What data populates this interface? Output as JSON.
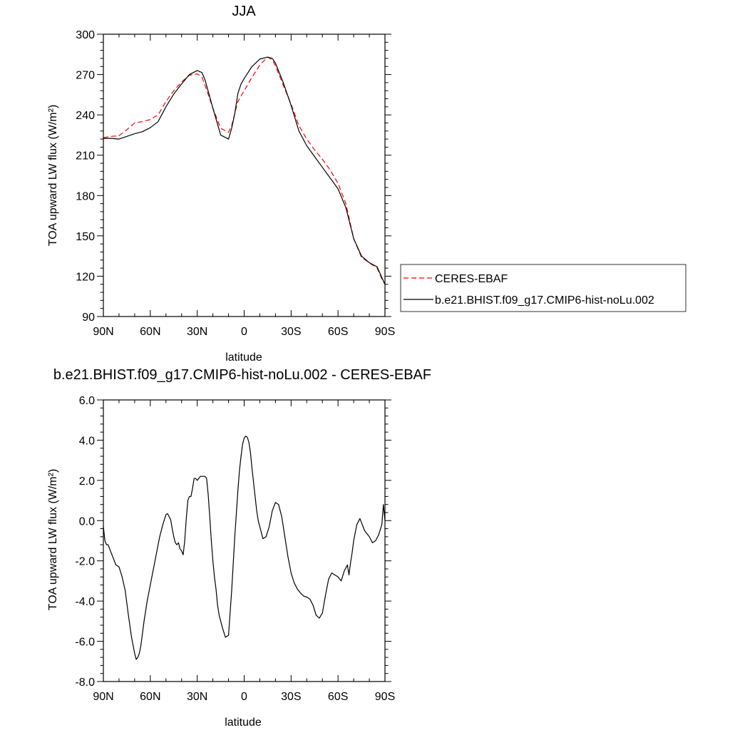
{
  "chart_data": [
    {
      "type": "line",
      "title": "JJA",
      "xlabel": "latitude",
      "ylabel": "TOA upward LW flux (W/m²)",
      "xlim": [
        90,
        -90
      ],
      "ylim": [
        90,
        300
      ],
      "x_ticks": [
        90,
        60,
        30,
        0,
        -30,
        -60,
        -90
      ],
      "x_tick_labels": [
        "90N",
        "60N",
        "30N",
        "0",
        "30S",
        "60S",
        "90S"
      ],
      "y_ticks": [
        90,
        120,
        150,
        180,
        210,
        240,
        270,
        300
      ],
      "y_tick_labels": [
        "90",
        "120",
        "150",
        "180",
        "210",
        "240",
        "270",
        "300"
      ],
      "grid": false,
      "legend_position": "right",
      "series": [
        {
          "name": "CERES-EBAF",
          "style": "dashed",
          "color": "#ff0000",
          "x": [
            90,
            85,
            80,
            75,
            70,
            65,
            60,
            55,
            50,
            45,
            40,
            35,
            30,
            27,
            25,
            20,
            15,
            10,
            8,
            6,
            4,
            2,
            0,
            -5,
            -10,
            -15,
            -18,
            -20,
            -25,
            -30,
            -35,
            -40,
            -45,
            -50,
            -55,
            -60,
            -65,
            -70,
            -75,
            -80,
            -85,
            -88,
            -90
          ],
          "y": [
            223,
            224,
            224.5,
            229,
            234,
            235,
            236.5,
            240,
            250,
            258,
            264.5,
            269.5,
            270.5,
            268,
            262,
            245,
            230,
            227,
            232,
            241,
            250,
            254,
            258,
            268,
            277,
            283,
            281,
            276.5,
            262,
            248,
            232,
            222,
            214,
            207,
            199,
            189,
            174,
            148,
            134,
            130,
            126,
            118,
            114
          ]
        },
        {
          "name": "b.e21.BHIST.f09_g17.CMIP6-hist-noLu.002",
          "style": "solid",
          "color": "#000000",
          "x": [
            90,
            85,
            80,
            75,
            70,
            65,
            60,
            55,
            50,
            45,
            40,
            35,
            30,
            27,
            25,
            20,
            15,
            10,
            8,
            6,
            4,
            2,
            0,
            -5,
            -10,
            -15,
            -18,
            -20,
            -25,
            -30,
            -35,
            -40,
            -45,
            -50,
            -55,
            -60,
            -65,
            -70,
            -75,
            -80,
            -85,
            -88,
            -90
          ],
          "y": [
            222.5,
            222.5,
            222,
            224,
            226,
            227.5,
            230.5,
            235,
            246,
            255.5,
            263,
            270,
            273,
            271.5,
            266,
            245,
            225,
            222,
            230,
            241,
            256,
            263,
            267,
            276,
            281.5,
            283,
            282,
            278.5,
            264,
            247,
            228,
            217,
            209,
            201,
            193,
            185,
            171,
            148,
            135,
            130,
            127,
            119,
            114
          ]
        }
      ]
    },
    {
      "type": "line",
      "title": "b.e21.BHIST.f09_g17.CMIP6-hist-noLu.002 - CERES-EBAF",
      "xlabel": "latitude",
      "ylabel": "TOA upward LW flux (W/m²)",
      "xlim": [
        90,
        -90
      ],
      "ylim": [
        -8,
        6
      ],
      "x_ticks": [
        90,
        60,
        30,
        0,
        -30,
        -60,
        -90
      ],
      "x_tick_labels": [
        "90N",
        "60N",
        "30N",
        "0",
        "30S",
        "60S",
        "90S"
      ],
      "y_ticks": [
        -8,
        -6,
        -4,
        -2,
        0,
        2,
        4,
        6
      ],
      "y_tick_labels": [
        "-8.0",
        "-6.0",
        "-4.0",
        "-2.0",
        "0.0",
        "2.0",
        "4.0",
        "6.0"
      ],
      "grid": false,
      "series": [
        {
          "style": "solid",
          "color": "#000000",
          "x": [
            90,
            89,
            88,
            87,
            86,
            84,
            82,
            80,
            78,
            76,
            74,
            72,
            70,
            69,
            68,
            67,
            66,
            65,
            64,
            62,
            60,
            58,
            56,
            54,
            52,
            50,
            49,
            48,
            47,
            46,
            45,
            44,
            43,
            42,
            41,
            40,
            39,
            38,
            37,
            36,
            35,
            34,
            33,
            32,
            31,
            30,
            29,
            28,
            27,
            26,
            25,
            24,
            23,
            22,
            21,
            20,
            19,
            18,
            17,
            16,
            14,
            12,
            10,
            8,
            6,
            4,
            3,
            2,
            1,
            0,
            -1,
            -2,
            -3,
            -4,
            -5,
            -6,
            -7,
            -8,
            -9,
            -10,
            -12,
            -14,
            -16,
            -18,
            -20,
            -22,
            -24,
            -26,
            -28,
            -30,
            -32,
            -34,
            -36,
            -38,
            -40,
            -42,
            -44,
            -46,
            -48,
            -50,
            -52,
            -54,
            -56,
            -58,
            -60,
            -62,
            -64,
            -66,
            -67,
            -68,
            -69,
            -70,
            -72,
            -74,
            -76,
            -77,
            -78,
            -80,
            -82,
            -84,
            -86,
            -88,
            -89,
            -90
          ],
          "y": [
            -0.3,
            -1.0,
            -1.2,
            -1.2,
            -1.4,
            -1.8,
            -2.2,
            -2.3,
            -2.8,
            -3.5,
            -4.7,
            -5.8,
            -6.6,
            -6.9,
            -6.8,
            -6.6,
            -6.2,
            -5.6,
            -5.0,
            -4.0,
            -3.2,
            -2.4,
            -1.6,
            -0.8,
            -0.2,
            0.3,
            0.35,
            0.2,
            0.05,
            -0.4,
            -0.8,
            -1.1,
            -1.2,
            -1.1,
            -1.4,
            -1.5,
            -1.7,
            -1.0,
            0.1,
            1.0,
            1.2,
            1.2,
            1.6,
            2.1,
            2.1,
            2.0,
            2.1,
            2.2,
            2.2,
            2.2,
            2.2,
            2.1,
            1.3,
            0.2,
            -1.0,
            -2.0,
            -2.8,
            -3.4,
            -4.2,
            -4.7,
            -5.3,
            -5.8,
            -5.7,
            -3.5,
            -0.8,
            1.5,
            2.5,
            3.2,
            3.8,
            4.1,
            4.2,
            4.15,
            3.9,
            3.4,
            2.6,
            1.9,
            1.2,
            0.5,
            0.0,
            -0.3,
            -0.9,
            -0.8,
            -0.3,
            0.5,
            0.9,
            0.8,
            0.2,
            -0.8,
            -1.8,
            -2.6,
            -3.1,
            -3.4,
            -3.6,
            -3.75,
            -3.8,
            -3.9,
            -4.2,
            -4.7,
            -4.85,
            -4.6,
            -3.7,
            -2.9,
            -2.6,
            -2.7,
            -2.8,
            -3.0,
            -2.5,
            -2.2,
            -2.7,
            -2.1,
            -1.6,
            -1.0,
            -0.2,
            0.1,
            -0.3,
            -0.5,
            -0.6,
            -0.8,
            -1.1,
            -1.0,
            -0.7,
            -0.2,
            0.8,
            0.0
          ]
        }
      ]
    }
  ]
}
